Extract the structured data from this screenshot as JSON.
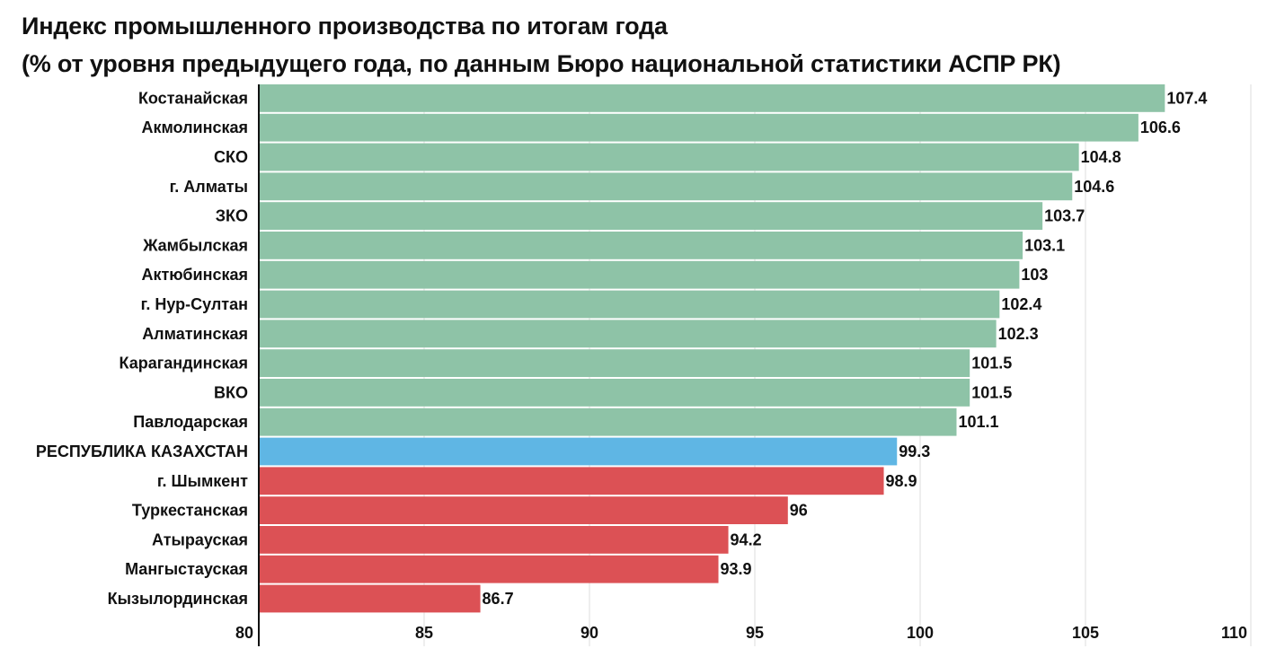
{
  "title": "Индекс промышленного производства по итогам года",
  "subtitle": "(% от уровня предыдущего года, по данным Бюро национальной статистики АСПР РК)",
  "colors": {
    "positive": "#8ec3a7",
    "national": "#5fb6e4",
    "negative": "#dc5155",
    "grid": "#dedede",
    "axis": "#111111"
  },
  "chart_data": {
    "type": "bar",
    "orientation": "horizontal",
    "title": "Индекс промышленного производства по итогам года",
    "subtitle": "(% от уровня предыдущего года, по данным Бюро национальной статистики АСПР РК)",
    "xlabel": "",
    "ylabel": "",
    "xlim": [
      80,
      110
    ],
    "xticks": [
      80,
      85,
      90,
      95,
      100,
      105,
      110
    ],
    "grid": true,
    "categories": [
      "Костанайская",
      "Акмолинская",
      "СКО",
      "г. Алматы",
      "ЗКО",
      "Жамбылская",
      "Актюбинская",
      "г. Нур-Султан",
      "Алматинская",
      "Карагандинская",
      "ВКО",
      "Павлодарская",
      "РЕСПУБЛИКА КАЗАХСТАН",
      "г. Шымкент",
      "Туркестанская",
      "Атырауская",
      "Мангыстауская",
      "Кызылординская"
    ],
    "values": [
      107.4,
      106.6,
      104.8,
      104.6,
      103.7,
      103.1,
      103,
      102.4,
      102.3,
      101.5,
      101.5,
      101.1,
      99.3,
      98.9,
      96,
      94.2,
      93.9,
      86.7
    ],
    "bar_colors": [
      "positive",
      "positive",
      "positive",
      "positive",
      "positive",
      "positive",
      "positive",
      "positive",
      "positive",
      "positive",
      "positive",
      "positive",
      "national",
      "negative",
      "negative",
      "negative",
      "negative",
      "negative"
    ]
  }
}
